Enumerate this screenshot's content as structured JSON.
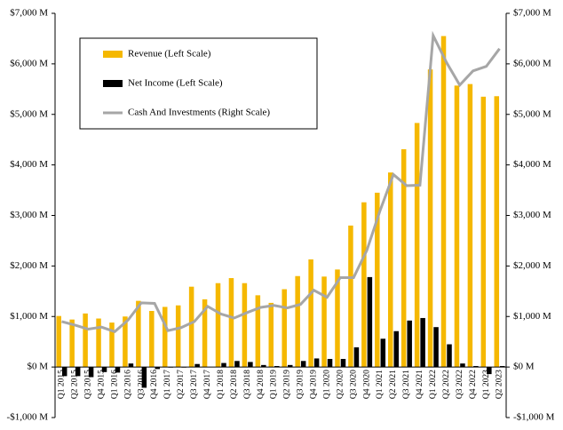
{
  "chart_data": {
    "type": "bar-line",
    "categories": [
      "Q1 2015",
      "Q2 2015",
      "Q3 2015",
      "Q4 2015",
      "Q1 2016",
      "Q2 2016",
      "Q3 2016",
      "Q4 2016",
      "Q1 2017",
      "Q2 2017",
      "Q3 2017",
      "Q4 2017",
      "Q1 2018",
      "Q2 2018",
      "Q3 2018",
      "Q4 2018",
      "Q1 2019",
      "Q2 2019",
      "Q3 2019",
      "Q4 2019",
      "Q1 2020",
      "Q2 2020",
      "Q3 2020",
      "Q4 2020",
      "Q1 2021",
      "Q2 2021",
      "Q3 2021",
      "Q4 2021",
      "Q1 2022",
      "Q2 2022",
      "Q3 2022",
      "Q4 2022",
      "Q1 2023",
      "Q2 2023"
    ],
    "series": [
      {
        "name": "Revenue (Left Scale)",
        "type": "bar",
        "color": "#f5b800",
        "values": [
          1010,
          940,
          1060,
          960,
          880,
          1000,
          1310,
          1110,
          1190,
          1220,
          1590,
          1340,
          1660,
          1760,
          1660,
          1420,
          1270,
          1540,
          1800,
          2130,
          1790,
          1930,
          2800,
          3260,
          3450,
          3850,
          4310,
          4830,
          5890,
          6550,
          5570,
          5600,
          5350,
          5360
        ]
      },
      {
        "name": "Net Income (Left Scale)",
        "type": "bar",
        "color": "#000000",
        "values": [
          -180,
          -180,
          -200,
          -100,
          -110,
          70,
          -410,
          -40,
          -10,
          -10,
          60,
          0,
          80,
          120,
          100,
          40,
          20,
          40,
          120,
          170,
          160,
          160,
          390,
          1780,
          560,
          710,
          920,
          970,
          790,
          450,
          70,
          20,
          -140,
          20
        ]
      },
      {
        "name": "Cash And Investments (Right Scale)",
        "type": "line",
        "axis": "y2",
        "color": "#a6a6a6",
        "values": [
          900,
          830,
          750,
          790,
          700,
          930,
          1270,
          1260,
          720,
          780,
          900,
          1200,
          1050,
          970,
          1080,
          1180,
          1220,
          1170,
          1240,
          1520,
          1380,
          1770,
          1770,
          2310,
          3100,
          3810,
          3590,
          3600,
          6560,
          6030,
          5580,
          5860,
          5950,
          6300
        ]
      }
    ],
    "ylim": [
      -1000,
      7000
    ],
    "yticks": [
      {
        "value": -1000,
        "label": "-$1,000 M"
      },
      {
        "value": 0,
        "label": "$0 M"
      },
      {
        "value": 1000,
        "label": "$1,000 M"
      },
      {
        "value": 2000,
        "label": "$2,000 M"
      },
      {
        "value": 3000,
        "label": "$3,000 M"
      },
      {
        "value": 4000,
        "label": "$4,000 M"
      },
      {
        "value": 5000,
        "label": "$5,000 M"
      },
      {
        "value": 6000,
        "label": "$6,000 M"
      },
      {
        "value": 7000,
        "label": "$7,000 M"
      }
    ],
    "y2lim": [
      -1000,
      7000
    ],
    "y2ticks": [
      {
        "value": -1000,
        "label": "-$1,000 M"
      },
      {
        "value": 0,
        "label": "$0 M"
      },
      {
        "value": 1000,
        "label": "$1,000 M"
      },
      {
        "value": 2000,
        "label": "$2,000 M"
      },
      {
        "value": 3000,
        "label": "$3,000 M"
      },
      {
        "value": 4000,
        "label": "$4,000 M"
      },
      {
        "value": 5000,
        "label": "$5,000 M"
      },
      {
        "value": 6000,
        "label": "$6,000 M"
      },
      {
        "value": 7000,
        "label": "$7,000 M"
      }
    ],
    "legend": "upper left",
    "grid": false
  }
}
